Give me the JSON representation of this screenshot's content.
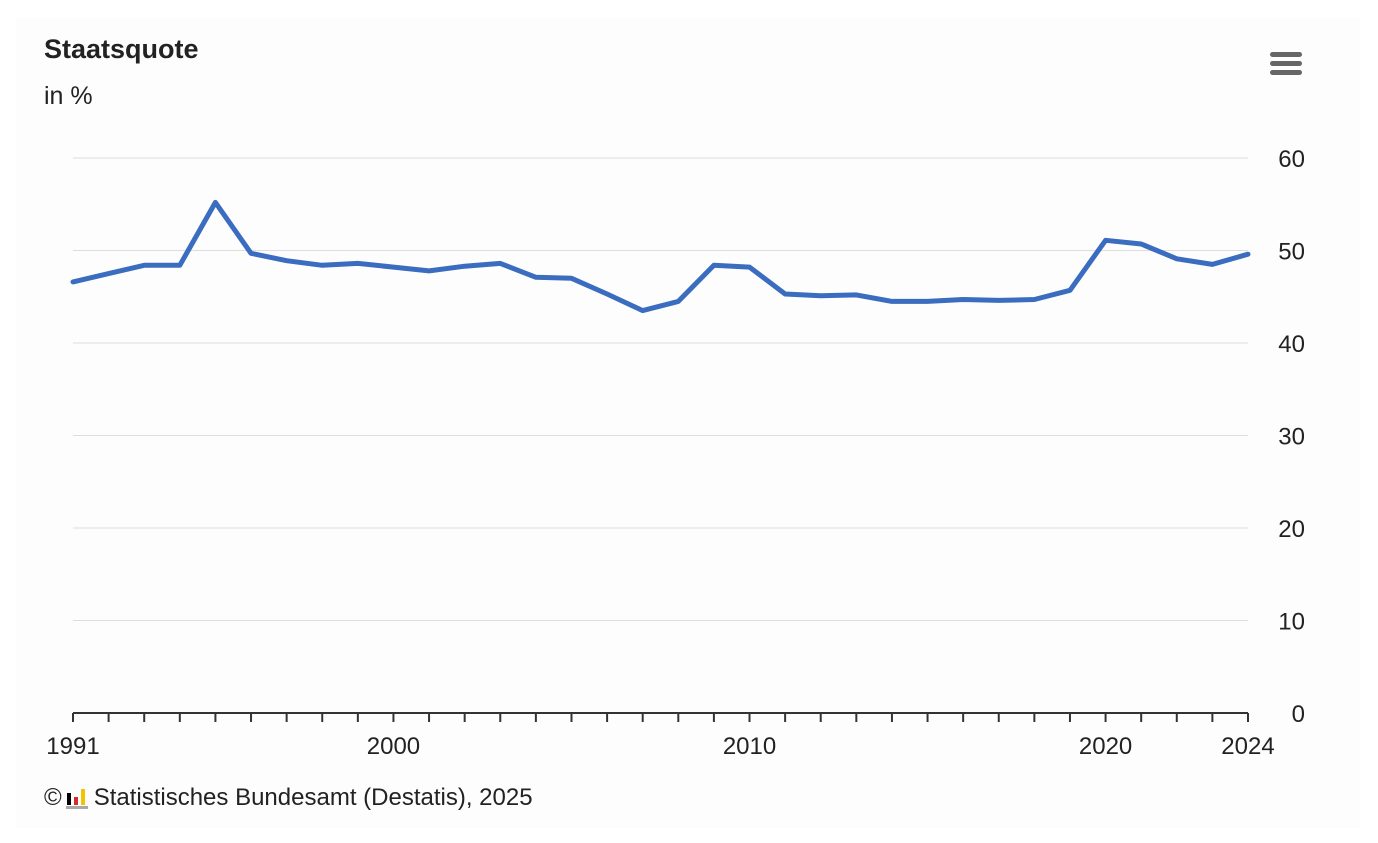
{
  "chart": {
    "title": "Staatsquote",
    "subtitle": "in %",
    "credits": {
      "copyright": "©",
      "text": "Statistisches Bundesamt (Destatis), 2025"
    },
    "menu": {
      "icon": "hamburger-menu-icon"
    }
  },
  "colors": {
    "series": "#3a6cbf",
    "grid": "#dddddd",
    "axis": "#333333",
    "text": "#222222",
    "menu_icon": "#666666",
    "logo_black": "#000000",
    "logo_red": "#d22d2d",
    "logo_gold": "#f2c300",
    "logo_base": "#a8a8a8"
  },
  "chart_data": {
    "type": "line",
    "title": "Staatsquote",
    "subtitle": "in %",
    "xlabel": "",
    "ylabel": "",
    "xlim": [
      1991,
      2024
    ],
    "ylim": [
      0,
      60
    ],
    "y_ticks": [
      0,
      10,
      20,
      30,
      40,
      50,
      60
    ],
    "y_axis_side": "right",
    "x_tick_labels": [
      "1991",
      "2000",
      "2010",
      "2020",
      "2024"
    ],
    "x_minor_ticks_every": 1,
    "grid": true,
    "legend": "none",
    "series": [
      {
        "x": [
          1991,
          1992,
          1993,
          1994,
          1995,
          1996,
          1997,
          1998,
          1999,
          2000,
          2001,
          2002,
          2003,
          2004,
          2005,
          2006,
          2007,
          2008,
          2009,
          2010,
          2011,
          2012,
          2013,
          2014,
          2015,
          2016,
          2017,
          2018,
          2019,
          2020,
          2021,
          2022,
          2023,
          2024
        ],
        "values": [
          46.6,
          47.5,
          48.4,
          48.4,
          55.2,
          49.7,
          48.9,
          48.4,
          48.6,
          48.2,
          47.8,
          48.3,
          48.6,
          47.1,
          47.0,
          45.3,
          43.5,
          44.5,
          48.4,
          48.2,
          45.3,
          45.1,
          45.2,
          44.5,
          44.5,
          44.7,
          44.6,
          44.7,
          45.7,
          51.1,
          50.7,
          49.1,
          48.5,
          49.6
        ]
      }
    ]
  }
}
